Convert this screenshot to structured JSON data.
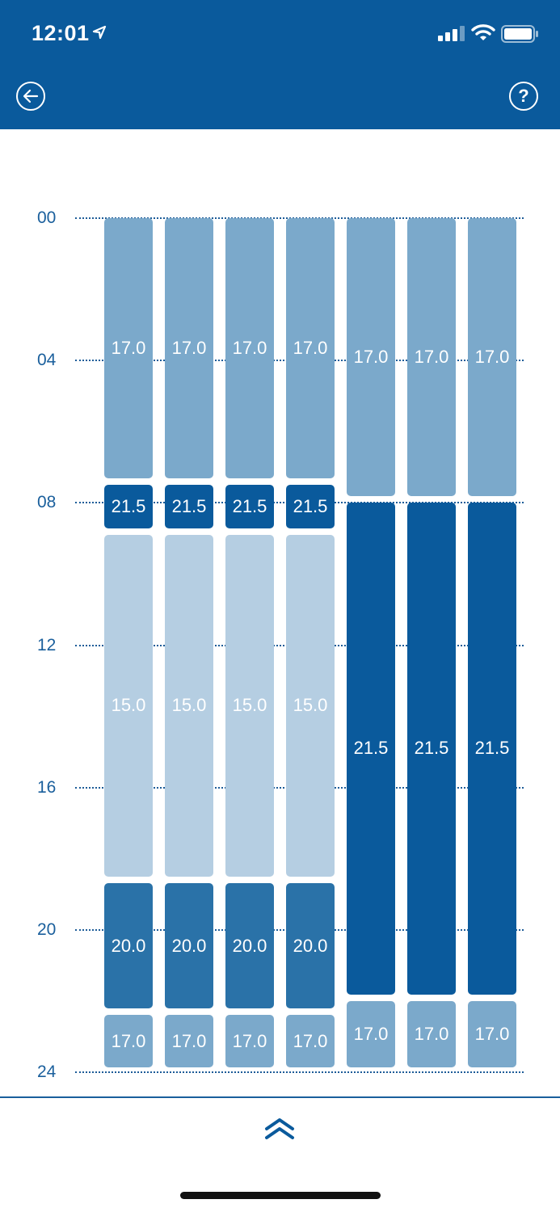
{
  "status_bar": {
    "time": "12:01",
    "icons": [
      "location-arrow-icon",
      "signal-icon",
      "wifi-icon",
      "battery-icon"
    ]
  },
  "header": {
    "back_icon": "arrow-left-icon",
    "help_label": "?"
  },
  "schedule": {
    "hour_labels": [
      "00",
      "04",
      "08",
      "12",
      "16",
      "20",
      "24"
    ],
    "colors": {
      "15.0": "#b5cee2",
      "17.0": "#7ba9cb",
      "20.0": "#2a72a8",
      "21.5": "#0a5a9c"
    },
    "days": [
      {
        "segments": [
          {
            "label": "17.0",
            "start": 0,
            "end": 7.4
          },
          {
            "label": "21.5",
            "start": 7.4,
            "end": 8.8
          },
          {
            "label": "15.0",
            "start": 8.8,
            "end": 18.6
          },
          {
            "label": "20.0",
            "start": 18.6,
            "end": 22.3
          },
          {
            "label": "17.0",
            "start": 22.3,
            "end": 24
          }
        ]
      },
      {
        "segments": [
          {
            "label": "17.0",
            "start": 0,
            "end": 7.4
          },
          {
            "label": "21.5",
            "start": 7.4,
            "end": 8.8
          },
          {
            "label": "15.0",
            "start": 8.8,
            "end": 18.6
          },
          {
            "label": "20.0",
            "start": 18.6,
            "end": 22.3
          },
          {
            "label": "17.0",
            "start": 22.3,
            "end": 24
          }
        ]
      },
      {
        "segments": [
          {
            "label": "17.0",
            "start": 0,
            "end": 7.4
          },
          {
            "label": "21.5",
            "start": 7.4,
            "end": 8.8
          },
          {
            "label": "15.0",
            "start": 8.8,
            "end": 18.6
          },
          {
            "label": "20.0",
            "start": 18.6,
            "end": 22.3
          },
          {
            "label": "17.0",
            "start": 22.3,
            "end": 24
          }
        ]
      },
      {
        "segments": [
          {
            "label": "17.0",
            "start": 0,
            "end": 7.4
          },
          {
            "label": "21.5",
            "start": 7.4,
            "end": 8.8
          },
          {
            "label": "15.0",
            "start": 8.8,
            "end": 18.6
          },
          {
            "label": "20.0",
            "start": 18.6,
            "end": 22.3
          },
          {
            "label": "17.0",
            "start": 22.3,
            "end": 24
          }
        ]
      },
      {
        "segments": [
          {
            "label": "17.0",
            "start": 0,
            "end": 7.9
          },
          {
            "label": "21.5",
            "start": 7.9,
            "end": 21.9
          },
          {
            "label": "17.0",
            "start": 21.9,
            "end": 24
          }
        ]
      },
      {
        "segments": [
          {
            "label": "17.0",
            "start": 0,
            "end": 7.9
          },
          {
            "label": "21.5",
            "start": 7.9,
            "end": 21.9
          },
          {
            "label": "17.0",
            "start": 21.9,
            "end": 24
          }
        ]
      },
      {
        "segments": [
          {
            "label": "17.0",
            "start": 0,
            "end": 7.9
          },
          {
            "label": "21.5",
            "start": 7.9,
            "end": 21.9
          },
          {
            "label": "17.0",
            "start": 21.9,
            "end": 24
          }
        ]
      }
    ]
  },
  "footer": {
    "expand_icon": "double-chevron-up-icon"
  }
}
